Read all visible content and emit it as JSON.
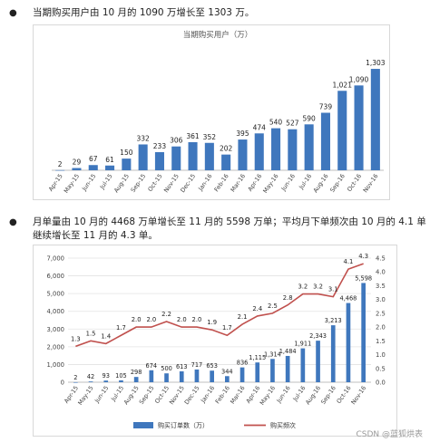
{
  "text": {
    "para1": "当期购买用户由 10 月的 1090 万增长至 1303 万。",
    "para2": "月单量由 10 月的 4468 万单增长至 11 月的 5598 万单；平均月下单频次由 10 月的 4.1 单继续增长至 11 月的 4.3 单。",
    "bullet": "●",
    "watermark": "CSDN @蓝狐烘表"
  },
  "chart_data": [
    {
      "type": "bar",
      "title": "当期购买用户（万）",
      "categories": [
        "Apr-15",
        "May-15",
        "Jun-15",
        "Jul-15",
        "Aug-15",
        "Sep-15",
        "Oct-15",
        "Nov-15",
        "Dec-15",
        "Jan-16",
        "Feb-16",
        "Mar-16",
        "Apr-16",
        "May-16",
        "Jun-16",
        "Jul-16",
        "Aug-16",
        "Sep-16",
        "Oct-16",
        "Nov-16"
      ],
      "values": [
        2,
        29,
        67,
        61,
        150,
        332,
        233,
        306,
        361,
        352,
        202,
        395,
        474,
        540,
        527,
        590,
        739,
        1021,
        1090,
        1303
      ],
      "value_labels": [
        "2",
        "29",
        "67",
        "61",
        "150",
        "332",
        "233",
        "306",
        "361",
        "352",
        "202",
        "395",
        "474",
        "540",
        "527",
        "590",
        "739",
        "1,021",
        "1,090",
        "1,303"
      ],
      "ylim": [
        0,
        1350
      ],
      "color": "#3f77bd"
    },
    {
      "type": "bar+line",
      "categories": [
        "Apr-15",
        "May-15",
        "Jun-15",
        "Jul-15",
        "Aug-15",
        "Sep-15",
        "Oct-15",
        "Nov-15",
        "Dec-15",
        "Jan-16",
        "Feb-16",
        "Mar-16",
        "Apr-16",
        "May-16",
        "Jun-16",
        "Jul-16",
        "Aug-16",
        "Sep-16",
        "Oct-16",
        "Nov-16"
      ],
      "series": [
        {
          "name": "购买订单数（万）",
          "type": "bar",
          "axis": "left",
          "color": "#3f77bd",
          "values": [
            2,
            42,
            93,
            105,
            298,
            674,
            500,
            613,
            717,
            653,
            344,
            836,
            1115,
            1314,
            1484,
            1911,
            2343,
            3213,
            4468,
            5598
          ],
          "labels": [
            "2",
            "42",
            "93",
            "105",
            "298",
            "674",
            "500",
            "613",
            "717",
            "653",
            "344",
            "836",
            "1,115",
            "1,314",
            "1,484",
            "1,911",
            "2,343",
            "3,213",
            "4,468",
            "5,598"
          ]
        },
        {
          "name": "购买频次",
          "type": "line",
          "axis": "right",
          "color": "#c0504d",
          "values": [
            1.3,
            1.5,
            1.4,
            1.7,
            2.0,
            2.0,
            2.2,
            2.0,
            2.0,
            1.9,
            1.7,
            2.1,
            2.4,
            2.5,
            2.8,
            3.2,
            3.2,
            3.1,
            4.1,
            4.3
          ],
          "labels": [
            "1.3",
            "1.5",
            "1.4",
            "1.7",
            "2.0",
            "2.0",
            "2.2",
            "2.0",
            "2.0",
            "1.9",
            "1.7",
            "2.1",
            "2.4",
            "2.5",
            "2.8",
            "3.2",
            "3.2",
            "3.1",
            "4.1",
            "4.3"
          ]
        }
      ],
      "yleft": {
        "range": [
          0,
          7000
        ],
        "ticks": [
          "0",
          "1,000",
          "2,000",
          "3,000",
          "4,000",
          "5,000",
          "6,000",
          "7,000"
        ]
      },
      "yright": {
        "range": [
          0,
          4.5
        ],
        "ticks": [
          "0.0",
          "0.5",
          "1.0",
          "1.5",
          "2.0",
          "2.5",
          "3.0",
          "3.5",
          "4.0",
          "4.5"
        ]
      },
      "legend_position": "bottom",
      "grid": true
    }
  ]
}
